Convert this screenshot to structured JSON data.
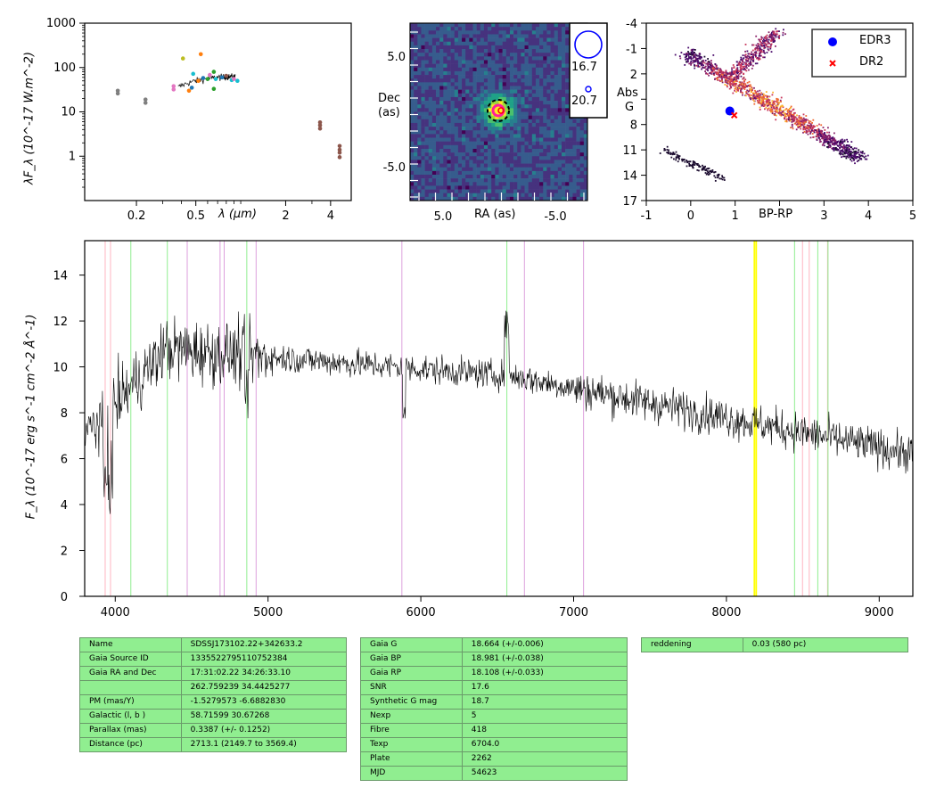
{
  "sed": {
    "ylabel": "λF_λ (10^-17 W.m^-2)",
    "xlabel": "λ (μm)",
    "xticks": [
      "0.2",
      "0.5",
      "2",
      "4"
    ],
    "yticks": [
      "1000",
      "100",
      "10",
      "1"
    ],
    "points": [
      {
        "x": 0.15,
        "y": 26,
        "color": "#7f7f7f"
      },
      {
        "x": 0.15,
        "y": 30,
        "color": "#7f7f7f"
      },
      {
        "x": 0.23,
        "y": 16,
        "color": "#7f7f7f"
      },
      {
        "x": 0.23,
        "y": 19,
        "color": "#7f7f7f"
      },
      {
        "x": 0.355,
        "y": 32,
        "color": "#e377c2"
      },
      {
        "x": 0.355,
        "y": 38,
        "color": "#e377c2"
      },
      {
        "x": 0.41,
        "y": 160,
        "color": "#bcbd22"
      },
      {
        "x": 0.45,
        "y": 30,
        "color": "#ff7f0e"
      },
      {
        "x": 0.47,
        "y": 35,
        "color": "#1f77b4"
      },
      {
        "x": 0.48,
        "y": 72,
        "color": "#17becf"
      },
      {
        "x": 0.52,
        "y": 50,
        "color": "#ff7f0e"
      },
      {
        "x": 0.54,
        "y": 200,
        "color": "#ff7f0e"
      },
      {
        "x": 0.56,
        "y": 58,
        "color": "#1f77b4"
      },
      {
        "x": 0.6,
        "y": 55,
        "color": "#2ca02c"
      },
      {
        "x": 0.62,
        "y": 68,
        "color": "#e377c2"
      },
      {
        "x": 0.66,
        "y": 80,
        "color": "#2ca02c"
      },
      {
        "x": 0.66,
        "y": 33,
        "color": "#2ca02c"
      },
      {
        "x": 0.68,
        "y": 55,
        "color": "#17becf"
      },
      {
        "x": 0.75,
        "y": 60,
        "color": "#1f77b4"
      },
      {
        "x": 0.8,
        "y": 65,
        "color": "#8c564b"
      },
      {
        "x": 0.87,
        "y": 52,
        "color": "#17becf"
      },
      {
        "x": 0.9,
        "y": 55,
        "color": "#e377c2"
      },
      {
        "x": 0.95,
        "y": 50,
        "color": "#17becf"
      },
      {
        "x": 3.4,
        "y": 4.2,
        "color": "#8c564b"
      },
      {
        "x": 3.4,
        "y": 5.0,
        "color": "#8c564b"
      },
      {
        "x": 3.4,
        "y": 5.8,
        "color": "#8c564b"
      },
      {
        "x": 4.6,
        "y": 0.95,
        "color": "#8c564b"
      },
      {
        "x": 4.6,
        "y": 1.2,
        "color": "#8c564b"
      },
      {
        "x": 4.6,
        "y": 1.4,
        "color": "#8c564b"
      },
      {
        "x": 4.6,
        "y": 1.7,
        "color": "#8c564b"
      }
    ]
  },
  "image": {
    "ylabel_line1": "Dec",
    "ylabel_line2": "(as)",
    "xlabel": "RA (as)",
    "xticks": [
      "5.0",
      "-5.0"
    ],
    "yticks": [
      "5.0",
      "-5.0"
    ],
    "mag_large": "16.7",
    "mag_small": "20.7"
  },
  "cmd": {
    "ylabel_line1": "Abs",
    "ylabel_line2": "G",
    "xlabel": "BP-RP",
    "xticks": [
      "-1",
      "0",
      "1",
      "3",
      "4",
      "5"
    ],
    "yticks": [
      "-4",
      "-1",
      "2",
      "8",
      "11",
      "14",
      "17"
    ],
    "legend": [
      "EDR3",
      "DR2"
    ],
    "edr3": {
      "bp_rp": 0.88,
      "g": 6.4
    },
    "dr2": {
      "bp_rp": 0.98,
      "g": 6.9
    }
  },
  "spectrum": {
    "ylabel": "F_λ (10^-17 erg s^-1 cm^-2 Å^-1)",
    "xticks": [
      "4000",
      "5000",
      "6000",
      "7000",
      "8000",
      "9000"
    ],
    "yticks": [
      "0",
      "2",
      "4",
      "6",
      "8",
      "10",
      "12",
      "14"
    ],
    "xlim": [
      3800,
      9220
    ],
    "ylim": [
      0,
      15.5
    ],
    "lines": [
      {
        "x": 3934,
        "color": "#ffb6c1"
      },
      {
        "x": 3969,
        "color": "#ffb6c1"
      },
      {
        "x": 4102,
        "color": "#90ee90"
      },
      {
        "x": 4341,
        "color": "#90ee90"
      },
      {
        "x": 4471,
        "color": "#dda0dd"
      },
      {
        "x": 4686,
        "color": "#dda0dd"
      },
      {
        "x": 4713,
        "color": "#dda0dd"
      },
      {
        "x": 4861,
        "color": "#90ee90"
      },
      {
        "x": 4922,
        "color": "#dda0dd"
      },
      {
        "x": 5876,
        "color": "#dda0dd"
      },
      {
        "x": 6563,
        "color": "#90ee90"
      },
      {
        "x": 6678,
        "color": "#dda0dd"
      },
      {
        "x": 7065,
        "color": "#dda0dd"
      },
      {
        "x": 8183,
        "color": "#ffff00"
      },
      {
        "x": 8195,
        "color": "#ffff00"
      },
      {
        "x": 8446,
        "color": "#90ee90"
      },
      {
        "x": 8498,
        "color": "#ffb6c1"
      },
      {
        "x": 8542,
        "color": "#ffb6c1"
      },
      {
        "x": 8598,
        "color": "#90ee90"
      },
      {
        "x": 8662,
        "color": "#ffb6c1"
      },
      {
        "x": 8665,
        "color": "#90ee90"
      }
    ]
  },
  "table1": [
    [
      "Name",
      "SDSSJ173102.22+342633.2"
    ],
    [
      "Gaia Source ID",
      "1335522795110752384"
    ],
    [
      "Gaia RA and Dec",
      "17:31:02.22    34:26:33.10"
    ],
    [
      "",
      "262.759239    34.4425277"
    ],
    [
      "PM (mas/Y)",
      "-1.5279573    -6.6882830"
    ],
    [
      "Galactic (l, b )",
      "58.71599    30.67268"
    ],
    [
      "Parallax (mas)",
      "0.3387 (+/- 0.1252)"
    ],
    [
      "Distance (pc)",
      "2713.1 (2149.7 to 3569.4)"
    ]
  ],
  "table2": [
    [
      "Gaia G",
      "18.664 (+/-0.006)"
    ],
    [
      "Gaia BP",
      "18.981 (+/-0.038)"
    ],
    [
      "Gaia RP",
      "18.108 (+/-0.033)"
    ],
    [
      "SNR",
      "17.6"
    ],
    [
      "Synthetic G mag",
      "18.7"
    ],
    [
      "Nexp",
      "5"
    ],
    [
      "Fibre",
      "418"
    ],
    [
      "Texp",
      "6704.0"
    ],
    [
      "Plate",
      "2262"
    ],
    [
      "MJD",
      "54623"
    ]
  ],
  "table3": [
    [
      "reddening",
      "0.03 (580 pc)"
    ]
  ]
}
